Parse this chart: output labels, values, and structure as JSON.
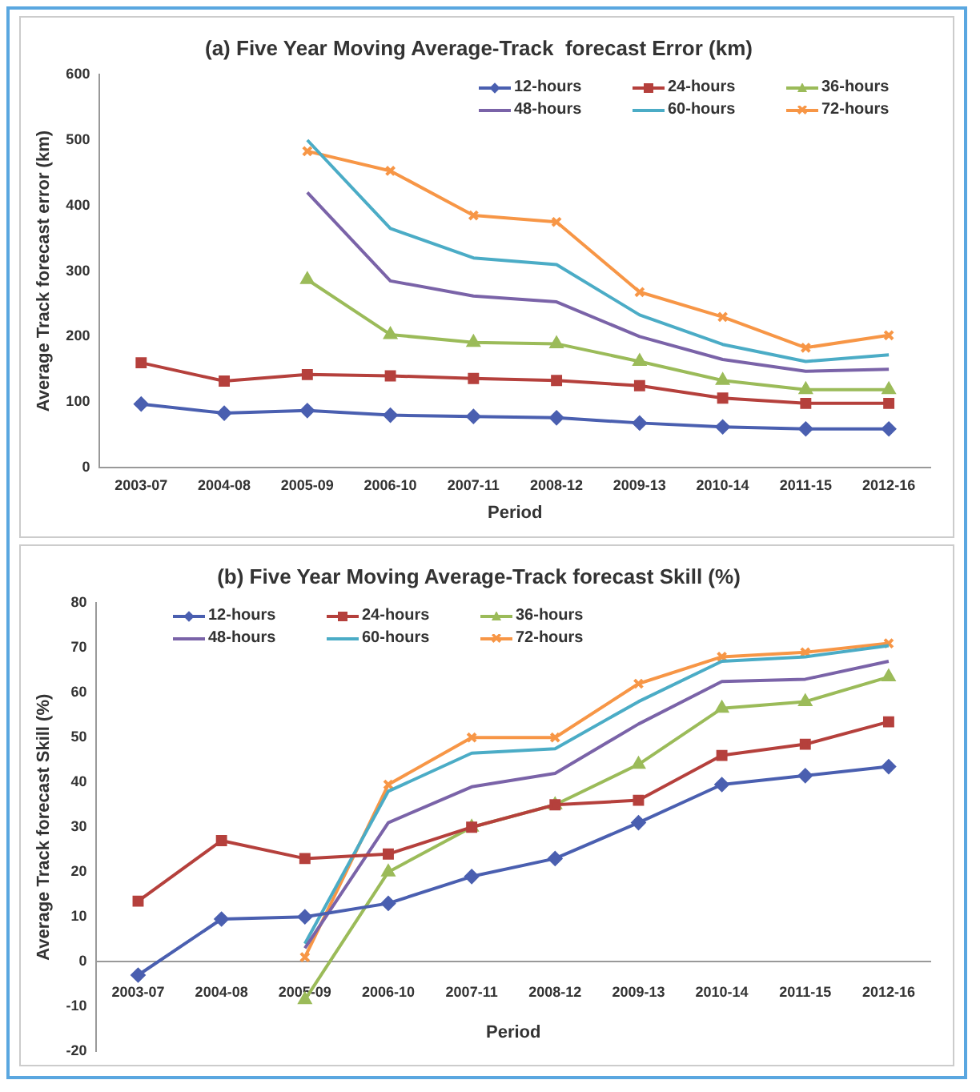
{
  "chart_data": [
    {
      "type": "line",
      "title": "(a) Five Year Moving Average-Track  forecast Error (km)",
      "xlabel": "Period",
      "ylabel": "Average Track forecast error (km)",
      "categories": [
        "2003-07",
        "2004-08",
        "2005-09",
        "2006-10",
        "2007-11",
        "2008-12",
        "2009-13",
        "2010-14",
        "2011-15",
        "2012-16"
      ],
      "series": [
        {
          "name": "12-hours",
          "color": "#4a5fb0",
          "marker": "diamond",
          "values": [
            97,
            83,
            87,
            80,
            78,
            76,
            68,
            62,
            59,
            59
          ]
        },
        {
          "name": "24-hours",
          "color": "#b5403c",
          "marker": "square",
          "values": [
            160,
            132,
            142,
            140,
            136,
            133,
            125,
            106,
            98,
            98
          ]
        },
        {
          "name": "36-hours",
          "color": "#9bbb59",
          "marker": "triangle",
          "values": [
            null,
            null,
            287,
            203,
            191,
            189,
            162,
            133,
            119,
            119
          ]
        },
        {
          "name": "48-hours",
          "color": "#7a63a8",
          "marker": "none",
          "values": [
            null,
            null,
            420,
            285,
            262,
            253,
            200,
            165,
            147,
            150
          ]
        },
        {
          "name": "60-hours",
          "color": "#4bacc6",
          "marker": "none",
          "values": [
            null,
            null,
            500,
            365,
            320,
            310,
            233,
            188,
            162,
            172
          ]
        },
        {
          "name": "72-hours",
          "color": "#f79646",
          "marker": "cross",
          "values": [
            null,
            null,
            483,
            453,
            385,
            375,
            268,
            230,
            183,
            202
          ]
        }
      ],
      "ylim": [
        0,
        600
      ],
      "yticks": [
        0,
        100,
        200,
        300,
        400,
        500,
        600
      ],
      "legend": "top right"
    },
    {
      "type": "line",
      "title": "(b) Five Year Moving Average-Track forecast Skill (%)",
      "xlabel": "Period",
      "ylabel": "Average Track forecast Skill (%)",
      "categories": [
        "2003-07",
        "2004-08",
        "2005-09",
        "2006-10",
        "2007-11",
        "2008-12",
        "2009-13",
        "2010-14",
        "2011-15",
        "2012-16"
      ],
      "series": [
        {
          "name": "12-hours",
          "color": "#4a5fb0",
          "marker": "diamond",
          "values": [
            -3,
            9.5,
            10,
            13,
            19,
            23,
            31,
            39.5,
            41.5,
            43.5
          ]
        },
        {
          "name": "24-hours",
          "color": "#b5403c",
          "marker": "square",
          "values": [
            13.5,
            27,
            23,
            24,
            30,
            35,
            36,
            46,
            48.5,
            53.5
          ]
        },
        {
          "name": "36-hours",
          "color": "#9bbb59",
          "marker": "triangle",
          "values": [
            null,
            null,
            -8.5,
            20,
            30,
            35,
            44,
            56.5,
            58,
            63.5
          ]
        },
        {
          "name": "48-hours",
          "color": "#7a63a8",
          "marker": "none",
          "values": [
            null,
            null,
            3,
            31,
            39,
            42,
            53,
            62.5,
            63,
            67
          ]
        },
        {
          "name": "60-hours",
          "color": "#4bacc6",
          "marker": "none",
          "values": [
            null,
            null,
            4,
            38,
            46.5,
            47.5,
            58,
            67,
            68,
            70.5
          ]
        },
        {
          "name": "72-hours",
          "color": "#f79646",
          "marker": "cross",
          "values": [
            null,
            null,
            1,
            39.5,
            50,
            50,
            62,
            68,
            69,
            71
          ]
        }
      ],
      "ylim": [
        -20,
        80
      ],
      "yticks": [
        -20,
        -10,
        0,
        10,
        20,
        30,
        40,
        50,
        60,
        70,
        80
      ],
      "legend": "top left"
    }
  ]
}
